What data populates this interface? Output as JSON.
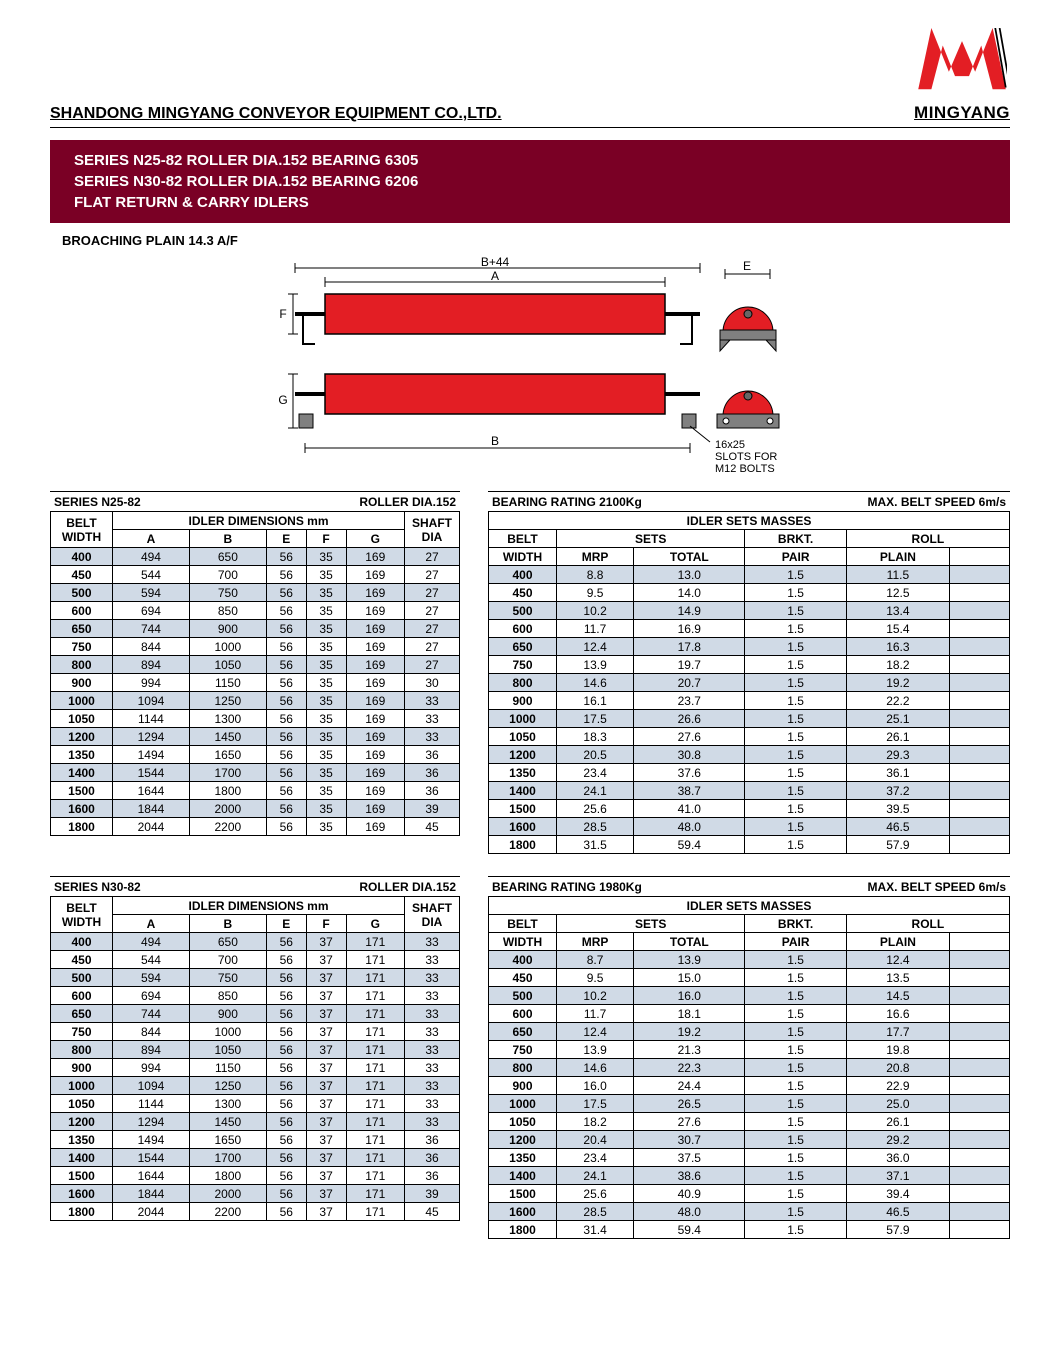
{
  "company": "SHANDONG MINGYANG CONVEYOR EQUIPMENT CO.,LTD.",
  "brand": "MINGYANG",
  "title": {
    "l1": "SERIES N25-82 ROLLER DIA.152 BEARING 6305",
    "l2": "SERIES N30-82 ROLLER DIA.152 BEARING 6206",
    "l3": "FLAT RETURN & CARRY IDLERS"
  },
  "subtitle": "BROACHING PLAIN 14.3 A/F",
  "diagram": {
    "labels": {
      "b44": "B+44",
      "a": "A",
      "e": "E",
      "f": "F",
      "g": "G",
      "b": "B",
      "slots": "16x25\nSLOTS FOR\nM12 BOLTS"
    },
    "colors": {
      "roller": "#e31e24",
      "bracket": "#808080",
      "shaft": "#666"
    }
  },
  "tables": {
    "n25": {
      "series_label": "SERIES N25-82",
      "roller_label": "ROLLER DIA.152",
      "bearing_label": "BEARING RATING 2100Kg",
      "speed_label": "MAX. BELT SPEED 6m/s",
      "dim_header": "IDLER DIMENSIONS mm",
      "mass_header": "IDLER SETS MASSES",
      "cols_dim": [
        "BELT WIDTH",
        "A",
        "B",
        "E",
        "F",
        "G",
        "SHAFT DIA"
      ],
      "cols_mass_top": [
        "BELT",
        "SETS",
        "BRKT.",
        "ROLL"
      ],
      "cols_mass_sub": [
        "WIDTH",
        "MRP",
        "TOTAL",
        "PAIR",
        "PLAIN",
        ""
      ],
      "dim_rows": [
        [
          400,
          494,
          650,
          56,
          35,
          169,
          27
        ],
        [
          450,
          544,
          700,
          56,
          35,
          169,
          27
        ],
        [
          500,
          594,
          750,
          56,
          35,
          169,
          27
        ],
        [
          600,
          694,
          850,
          56,
          35,
          169,
          27
        ],
        [
          650,
          744,
          900,
          56,
          35,
          169,
          27
        ],
        [
          750,
          844,
          1000,
          56,
          35,
          169,
          27
        ],
        [
          800,
          894,
          1050,
          56,
          35,
          169,
          27
        ],
        [
          900,
          994,
          1150,
          56,
          35,
          169,
          30
        ],
        [
          1000,
          1094,
          1250,
          56,
          35,
          169,
          33
        ],
        [
          1050,
          1144,
          1300,
          56,
          35,
          169,
          33
        ],
        [
          1200,
          1294,
          1450,
          56,
          35,
          169,
          33
        ],
        [
          1350,
          1494,
          1650,
          56,
          35,
          169,
          36
        ],
        [
          1400,
          1544,
          1700,
          56,
          35,
          169,
          36
        ],
        [
          1500,
          1644,
          1800,
          56,
          35,
          169,
          36
        ],
        [
          1600,
          1844,
          2000,
          56,
          35,
          169,
          39
        ],
        [
          1800,
          2044,
          2200,
          56,
          35,
          169,
          45
        ]
      ],
      "mass_rows": [
        [
          400,
          "8.8",
          "13.0",
          "1.5",
          "11.5",
          ""
        ],
        [
          450,
          "9.5",
          "14.0",
          "1.5",
          "12.5",
          ""
        ],
        [
          500,
          "10.2",
          "14.9",
          "1.5",
          "13.4",
          ""
        ],
        [
          600,
          "11.7",
          "16.9",
          "1.5",
          "15.4",
          ""
        ],
        [
          650,
          "12.4",
          "17.8",
          "1.5",
          "16.3",
          ""
        ],
        [
          750,
          "13.9",
          "19.7",
          "1.5",
          "18.2",
          ""
        ],
        [
          800,
          "14.6",
          "20.7",
          "1.5",
          "19.2",
          ""
        ],
        [
          900,
          "16.1",
          "23.7",
          "1.5",
          "22.2",
          ""
        ],
        [
          1000,
          "17.5",
          "26.6",
          "1.5",
          "25.1",
          ""
        ],
        [
          1050,
          "18.3",
          "27.6",
          "1.5",
          "26.1",
          ""
        ],
        [
          1200,
          "20.5",
          "30.8",
          "1.5",
          "29.3",
          ""
        ],
        [
          1350,
          "23.4",
          "37.6",
          "1.5",
          "36.1",
          ""
        ],
        [
          1400,
          "24.1",
          "38.7",
          "1.5",
          "37.2",
          ""
        ],
        [
          1500,
          "25.6",
          "41.0",
          "1.5",
          "39.5",
          ""
        ],
        [
          1600,
          "28.5",
          "48.0",
          "1.5",
          "46.5",
          ""
        ],
        [
          1800,
          "31.5",
          "59.4",
          "1.5",
          "57.9",
          ""
        ]
      ]
    },
    "n30": {
      "series_label": "SERIES N30-82",
      "roller_label": "ROLLER DIA.152",
      "bearing_label": "BEARING RATING 1980Kg",
      "speed_label": "MAX. BELT SPEED 6m/s",
      "dim_header": "IDLER DIMENSIONS mm",
      "mass_header": "IDLER SETS MASSES",
      "dim_rows": [
        [
          400,
          494,
          650,
          56,
          37,
          171,
          33
        ],
        [
          450,
          544,
          700,
          56,
          37,
          171,
          33
        ],
        [
          500,
          594,
          750,
          56,
          37,
          171,
          33
        ],
        [
          600,
          694,
          850,
          56,
          37,
          171,
          33
        ],
        [
          650,
          744,
          900,
          56,
          37,
          171,
          33
        ],
        [
          750,
          844,
          1000,
          56,
          37,
          171,
          33
        ],
        [
          800,
          894,
          1050,
          56,
          37,
          171,
          33
        ],
        [
          900,
          994,
          1150,
          56,
          37,
          171,
          33
        ],
        [
          1000,
          1094,
          1250,
          56,
          37,
          171,
          33
        ],
        [
          1050,
          1144,
          1300,
          56,
          37,
          171,
          33
        ],
        [
          1200,
          1294,
          1450,
          56,
          37,
          171,
          33
        ],
        [
          1350,
          1494,
          1650,
          56,
          37,
          171,
          36
        ],
        [
          1400,
          1544,
          1700,
          56,
          37,
          171,
          36
        ],
        [
          1500,
          1644,
          1800,
          56,
          37,
          171,
          36
        ],
        [
          1600,
          1844,
          2000,
          56,
          37,
          171,
          39
        ],
        [
          1800,
          2044,
          2200,
          56,
          37,
          171,
          45
        ]
      ],
      "mass_rows": [
        [
          400,
          "8.7",
          "13.9",
          "1.5",
          "12.4",
          ""
        ],
        [
          450,
          "9.5",
          "15.0",
          "1.5",
          "13.5",
          ""
        ],
        [
          500,
          "10.2",
          "16.0",
          "1.5",
          "14.5",
          ""
        ],
        [
          600,
          "11.7",
          "18.1",
          "1.5",
          "16.6",
          ""
        ],
        [
          650,
          "12.4",
          "19.2",
          "1.5",
          "17.7",
          ""
        ],
        [
          750,
          "13.9",
          "21.3",
          "1.5",
          "19.8",
          ""
        ],
        [
          800,
          "14.6",
          "22.3",
          "1.5",
          "20.8",
          ""
        ],
        [
          900,
          "16.0",
          "24.4",
          "1.5",
          "22.9",
          ""
        ],
        [
          1000,
          "17.5",
          "26.5",
          "1.5",
          "25.0",
          ""
        ],
        [
          1050,
          "18.2",
          "27.6",
          "1.5",
          "26.1",
          ""
        ],
        [
          1200,
          "20.4",
          "30.7",
          "1.5",
          "29.2",
          ""
        ],
        [
          1350,
          "23.4",
          "37.5",
          "1.5",
          "36.0",
          ""
        ],
        [
          1400,
          "24.1",
          "38.6",
          "1.5",
          "37.1",
          ""
        ],
        [
          1500,
          "25.6",
          "40.9",
          "1.5",
          "39.4",
          ""
        ],
        [
          1600,
          "28.5",
          "48.0",
          "1.5",
          "46.5",
          ""
        ],
        [
          1800,
          "31.4",
          "59.4",
          "1.5",
          "57.9",
          ""
        ]
      ]
    }
  },
  "style": {
    "header_bg": "#7a0025",
    "zebra": "#d0dae6",
    "logo_red": "#e31e24"
  }
}
